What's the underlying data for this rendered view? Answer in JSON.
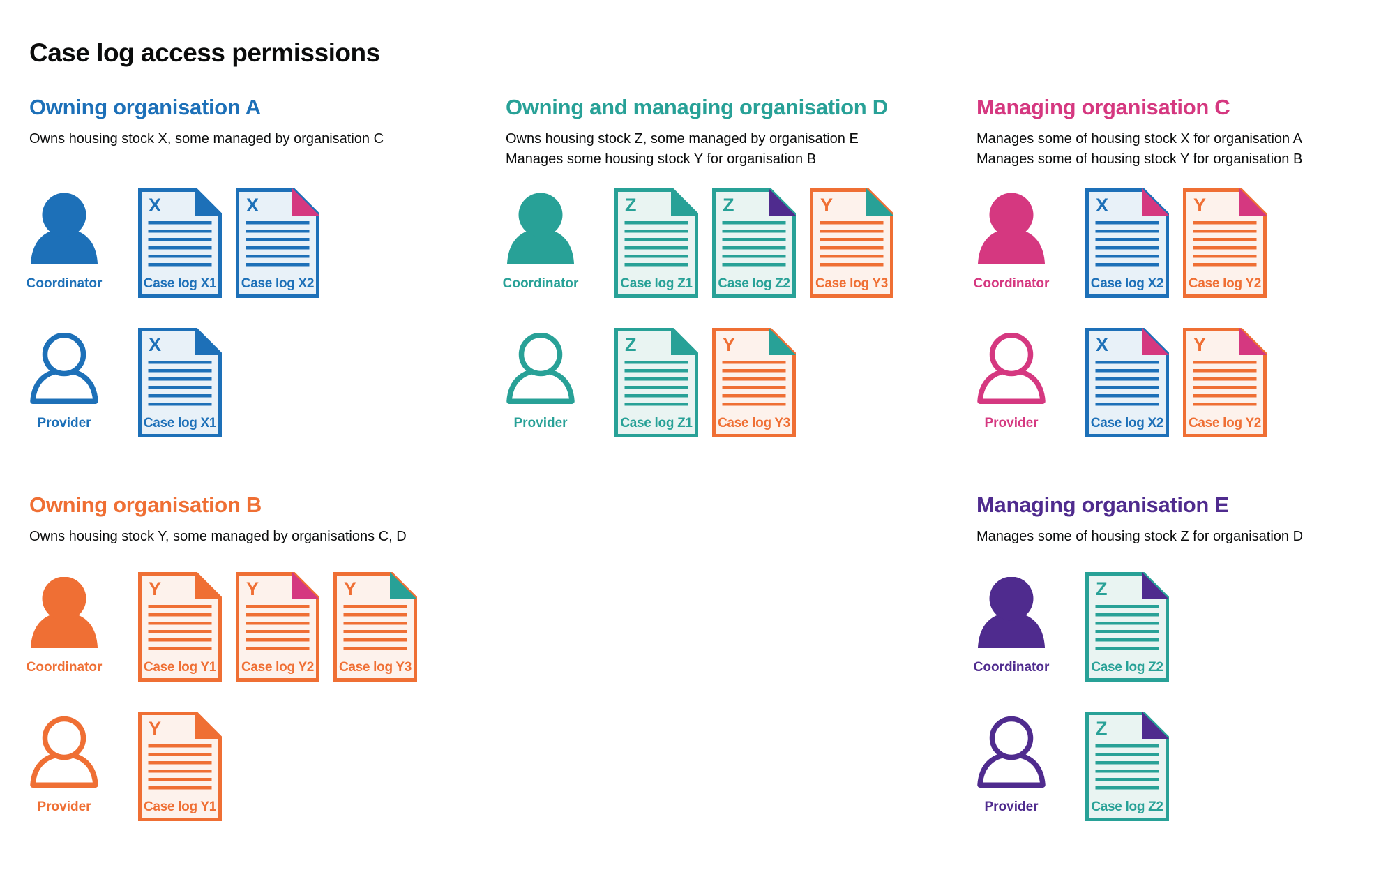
{
  "page": {
    "title": "Case log access permissions",
    "background": "#ffffff"
  },
  "colors": {
    "blue": "#1d70b8",
    "teal": "#28a197",
    "orange": "#ef6f34",
    "pink": "#d53880",
    "purple": "#4f2b8e",
    "text": "#0b0c0c"
  },
  "doc_fills": {
    "blue": "#e8f1f8",
    "teal": "#e9f4f2",
    "orange": "#fdf2ec"
  },
  "roles": {
    "coordinator": "Coordinator",
    "provider": "Provider"
  },
  "sections": [
    {
      "id": "A",
      "heading": "Owning organisation A",
      "color": "blue",
      "description": [
        "Owns housing stock X, some managed by organisation C"
      ],
      "coordinator_docs": [
        {
          "letter": "X",
          "label": "Case log X1",
          "color": "blue",
          "fold": "blue"
        },
        {
          "letter": "X",
          "label": "Case log X2",
          "color": "blue",
          "fold": "pink"
        }
      ],
      "provider_docs": [
        {
          "letter": "X",
          "label": "Case log X1",
          "color": "blue",
          "fold": "blue"
        }
      ]
    },
    {
      "id": "D",
      "heading": "Owning and managing organisation D",
      "color": "teal",
      "description": [
        "Owns housing stock Z, some managed by organisation E",
        "Manages some housing stock Y for organisation B"
      ],
      "coordinator_docs": [
        {
          "letter": "Z",
          "label": "Case log Z1",
          "color": "teal",
          "fold": "teal"
        },
        {
          "letter": "Z",
          "label": "Case log Z2",
          "color": "teal",
          "fold": "purple"
        },
        {
          "letter": "Y",
          "label": "Case log Y3",
          "color": "orange",
          "fold": "teal"
        }
      ],
      "provider_docs": [
        {
          "letter": "Z",
          "label": "Case log Z1",
          "color": "teal",
          "fold": "teal"
        },
        {
          "letter": "Y",
          "label": "Case log Y3",
          "color": "orange",
          "fold": "teal"
        }
      ]
    },
    {
      "id": "C",
      "heading": "Managing organisation C",
      "color": "pink",
      "description": [
        "Manages some of housing stock X for organisation A",
        "Manages some of housing stock Y for organisation B"
      ],
      "coordinator_docs": [
        {
          "letter": "X",
          "label": "Case log X2",
          "color": "blue",
          "fold": "pink"
        },
        {
          "letter": "Y",
          "label": "Case log Y2",
          "color": "orange",
          "fold": "pink"
        }
      ],
      "provider_docs": [
        {
          "letter": "X",
          "label": "Case log X2",
          "color": "blue",
          "fold": "pink"
        },
        {
          "letter": "Y",
          "label": "Case log Y2",
          "color": "orange",
          "fold": "pink"
        }
      ]
    },
    {
      "id": "B",
      "heading": "Owning organisation B",
      "color": "orange",
      "description": [
        "Owns housing stock Y, some managed by organisations C, D"
      ],
      "coordinator_docs": [
        {
          "letter": "Y",
          "label": "Case log Y1",
          "color": "orange",
          "fold": "orange"
        },
        {
          "letter": "Y",
          "label": "Case log Y2",
          "color": "orange",
          "fold": "pink"
        },
        {
          "letter": "Y",
          "label": "Case log Y3",
          "color": "orange",
          "fold": "teal"
        }
      ],
      "provider_docs": [
        {
          "letter": "Y",
          "label": "Case log Y1",
          "color": "orange",
          "fold": "orange"
        }
      ]
    },
    {
      "id": "E",
      "heading": "Managing organisation E",
      "color": "purple",
      "description": [
        "Manages some of housing stock Z for organisation D"
      ],
      "coordinator_docs": [
        {
          "letter": "Z",
          "label": "Case log Z2",
          "color": "teal",
          "fold": "purple"
        }
      ],
      "provider_docs": [
        {
          "letter": "Z",
          "label": "Case log Z2",
          "color": "teal",
          "fold": "purple"
        }
      ]
    }
  ]
}
